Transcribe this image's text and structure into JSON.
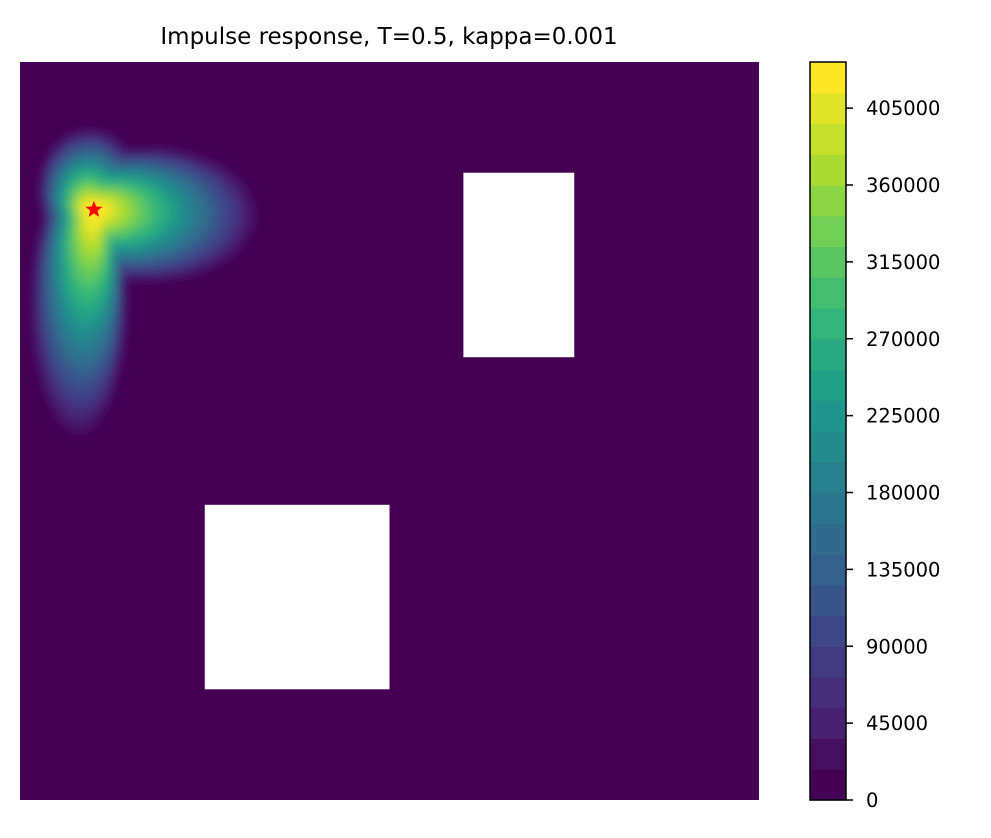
{
  "chart_data": {
    "type": "heatmap",
    "title": "Impulse response, T=0.5, kappa=0.001",
    "xlabel": "",
    "ylabel": "",
    "axes_visible": false,
    "domain": {
      "x": [
        0,
        1
      ],
      "y": [
        0,
        1
      ]
    },
    "holes": [
      {
        "name": "obstacle-upper-right",
        "x": [
          0.6,
          0.75
        ],
        "y": [
          0.6,
          0.85
        ]
      },
      {
        "name": "obstacle-lower-left",
        "x": [
          0.25,
          0.5
        ],
        "y": [
          0.15,
          0.4
        ]
      }
    ],
    "source_point": {
      "x": 0.1,
      "y": 0.8,
      "marker": "star",
      "color": "#ff0000"
    },
    "colormap": "viridis",
    "levels": 24,
    "colorbar": {
      "placement": "right",
      "range": [
        0,
        432000
      ],
      "ticks": [
        0,
        45000,
        90000,
        135000,
        180000,
        225000,
        270000,
        315000,
        360000,
        405000
      ],
      "tick_labels": [
        "0",
        "45000",
        "90000",
        "135000",
        "180000",
        "225000",
        "270000",
        "315000",
        "360000",
        "405000"
      ]
    },
    "peak_value": 430000,
    "background_color": "#440154"
  }
}
